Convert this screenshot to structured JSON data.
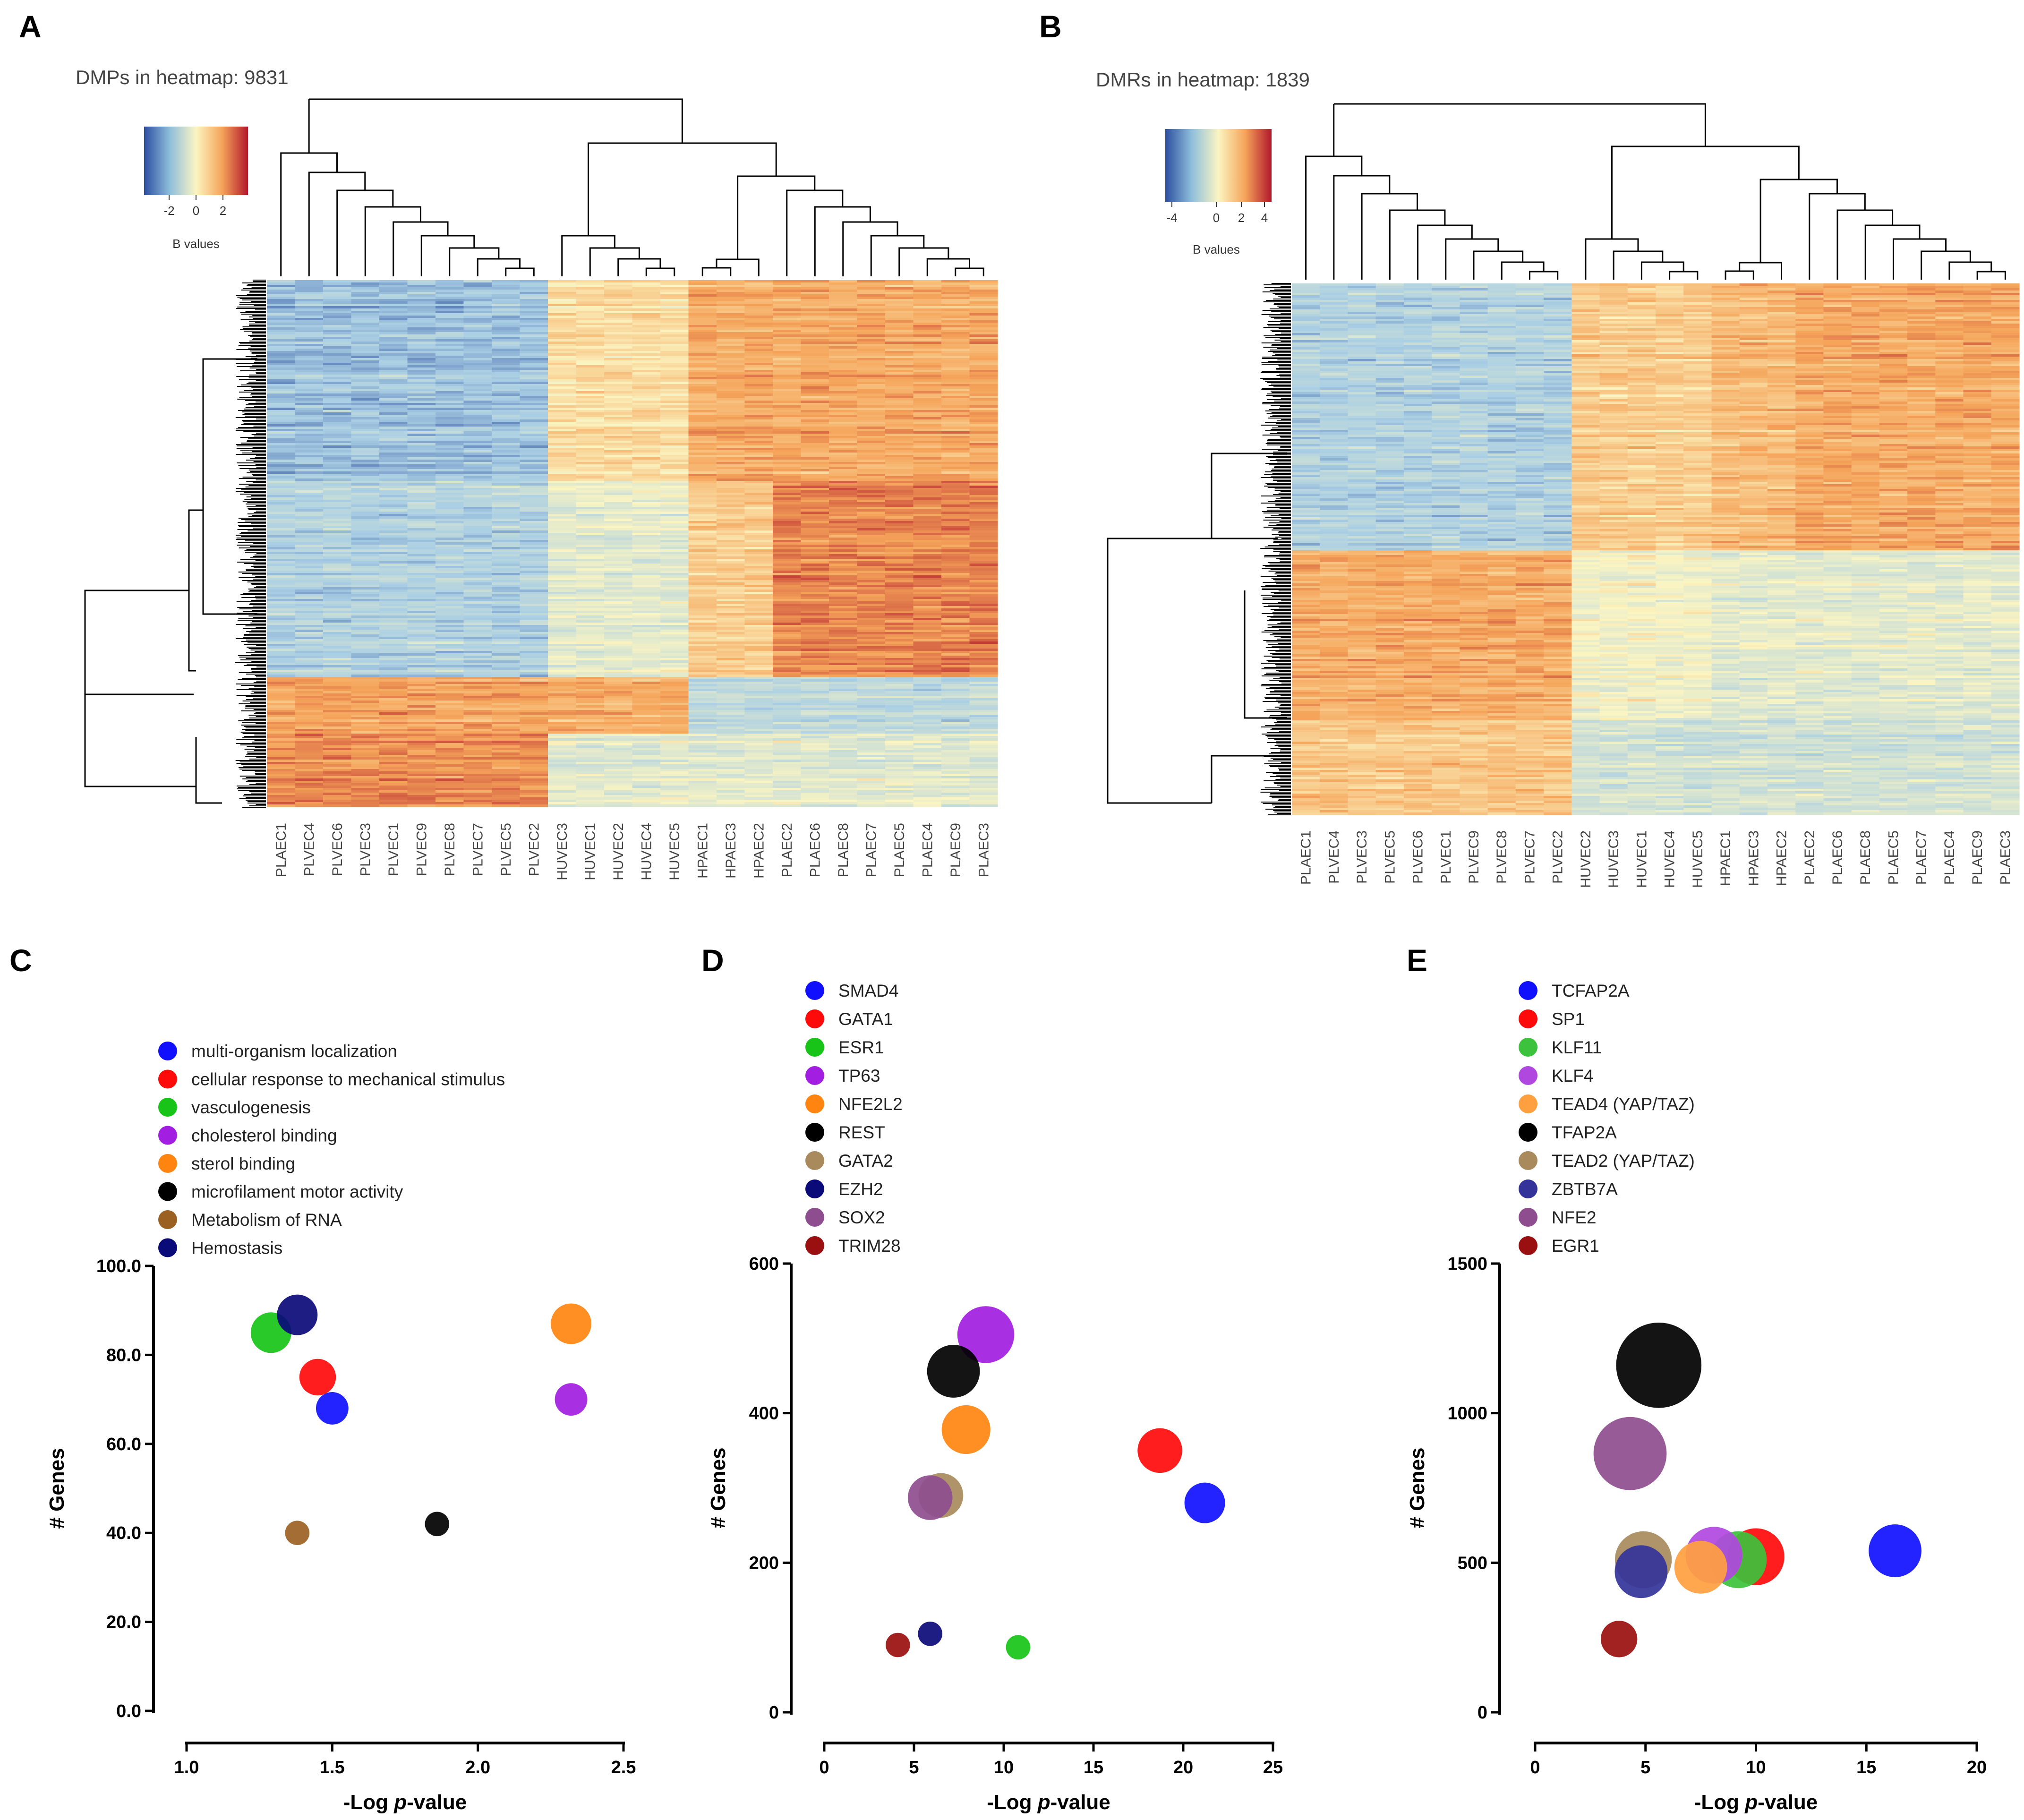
{
  "panels": {
    "A": "A",
    "B": "B",
    "C": "C",
    "D": "D",
    "E": "E"
  },
  "colors": {
    "blue": "#2c4fa0",
    "lightblue": "#aacfe4",
    "pale": "#fbf5c2",
    "orange": "#f5a45a",
    "red": "#b2182b"
  },
  "heatmapA": {
    "title": "DMPs in heatmap: 9831",
    "legend_ticks": [
      "-2",
      "0",
      "2"
    ],
    "legend_label": "B values",
    "columns": [
      "PLAEC1",
      "PLVEC4",
      "PLVEC6",
      "PLVEC3",
      "PLVEC1",
      "PLVEC9",
      "PLVEC8",
      "PLVEC7",
      "PLVEC5",
      "PLVEC2",
      "HUVEC3",
      "HUVEC1",
      "HUVEC2",
      "HUVEC4",
      "HUVEC5",
      "HPAEC1",
      "HPAEC3",
      "HPAEC2",
      "PLAEC2",
      "PLAEC6",
      "PLAEC8",
      "PLAEC7",
      "PLAEC5",
      "PLAEC4",
      "PLAEC9",
      "PLAEC3"
    ]
  },
  "heatmapB": {
    "title": "DMRs in heatmap: 1839",
    "legend_ticks": [
      "-4",
      "0",
      "2",
      "4"
    ],
    "legend_label": "B values",
    "columns": [
      "PLAEC1",
      "PLVEC4",
      "PLVEC3",
      "PLVEC5",
      "PLVEC6",
      "PLVEC1",
      "PLVEC9",
      "PLVEC8",
      "PLVEC7",
      "PLVEC2",
      "HUVEC2",
      "HUVEC3",
      "HUVEC1",
      "HUVEC4",
      "HUVEC5",
      "HPAEC1",
      "HPAEC3",
      "HPAEC2",
      "PLAEC2",
      "PLAEC6",
      "PLAEC8",
      "PLAEC5",
      "PLAEC7",
      "PLAEC4",
      "PLAEC9",
      "PLAEC3"
    ]
  },
  "chart_data": [
    {
      "id": "C",
      "type": "scatter",
      "title": "",
      "xlabel": "-Log p-value",
      "ylabel": "# Genes",
      "xlim": [
        1.0,
        2.5
      ],
      "ylim": [
        0,
        100
      ],
      "xticks": [
        "1.0",
        "1.5",
        "2.0",
        "2.5"
      ],
      "yticks": [
        "0.0",
        "20.0",
        "40.0",
        "60.0",
        "80.0",
        "100.0"
      ],
      "series": [
        {
          "name": "multi-organism localization",
          "color": "#1010ff",
          "x": 1.5,
          "y": 68,
          "size": 8
        },
        {
          "name": "cellular response to mechanical stimulus",
          "color": "#ff0a0a",
          "x": 1.45,
          "y": 75,
          "size": 9
        },
        {
          "name": "vasculogenesis",
          "color": "#18c418",
          "x": 1.29,
          "y": 85,
          "size": 10
        },
        {
          "name": "cholesterol binding",
          "color": "#a21ee0",
          "x": 2.32,
          "y": 70,
          "size": 8
        },
        {
          "name": "sterol binding",
          "color": "#ff8510",
          "x": 2.32,
          "y": 87,
          "size": 10
        },
        {
          "name": "microfilament motor activity",
          "color": "#000000",
          "x": 1.86,
          "y": 42,
          "size": 6
        },
        {
          "name": "Metabolism of RNA",
          "color": "#9b6122",
          "x": 1.38,
          "y": 40,
          "size": 6
        },
        {
          "name": "Hemostasis",
          "color": "#0a0a78",
          "x": 1.38,
          "y": 89,
          "size": 10
        }
      ]
    },
    {
      "id": "D",
      "type": "scatter",
      "title": "",
      "xlabel": "-Log p-value",
      "ylabel": "# Genes",
      "xlim": [
        0,
        25
      ],
      "ylim": [
        0,
        600
      ],
      "xticks": [
        "0",
        "5",
        "10",
        "15",
        "20",
        "25"
      ],
      "yticks": [
        "0",
        "200",
        "400",
        "600"
      ],
      "series": [
        {
          "name": "SMAD4",
          "color": "#1010ff",
          "x": 21.2,
          "y": 280,
          "size": 10
        },
        {
          "name": "GATA1",
          "color": "#ff0a0a",
          "x": 18.7,
          "y": 350,
          "size": 11
        },
        {
          "name": "ESR1",
          "color": "#18c418",
          "x": 10.8,
          "y": 87,
          "size": 6
        },
        {
          "name": "TP63",
          "color": "#a21ee0",
          "x": 9.0,
          "y": 505,
          "size": 14
        },
        {
          "name": "NFE2L2",
          "color": "#ff8510",
          "x": 7.9,
          "y": 378,
          "size": 12
        },
        {
          "name": "REST",
          "color": "#000000",
          "x": 7.2,
          "y": 456,
          "size": 13
        },
        {
          "name": "GATA2",
          "color": "#a88a5c",
          "x": 6.5,
          "y": 290,
          "size": 11
        },
        {
          "name": "EZH2",
          "color": "#0a0a78",
          "x": 5.9,
          "y": 105,
          "size": 6
        },
        {
          "name": "SOX2",
          "color": "#8e4d8e",
          "x": 5.9,
          "y": 287,
          "size": 11
        },
        {
          "name": "TRIM28",
          "color": "#9a0f0f",
          "x": 4.1,
          "y": 90,
          "size": 6
        }
      ]
    },
    {
      "id": "E",
      "type": "scatter",
      "title": "",
      "xlabel": "-Log p-value",
      "ylabel": "# Genes",
      "xlim": [
        0,
        20
      ],
      "ylim": [
        0,
        1500
      ],
      "xticks": [
        "0",
        "5",
        "10",
        "15",
        "20"
      ],
      "yticks": [
        "0",
        "500",
        "1000",
        "1500"
      ],
      "series": [
        {
          "name": "TCFAP2A",
          "color": "#1010ff",
          "x": 16.3,
          "y": 540,
          "size": 13
        },
        {
          "name": "SP1",
          "color": "#ff0a0a",
          "x": 10.0,
          "y": 520,
          "size": 14
        },
        {
          "name": "KLF11",
          "color": "#3cc23c",
          "x": 9.2,
          "y": 510,
          "size": 14
        },
        {
          "name": "KLF4",
          "color": "#b048e0",
          "x": 8.1,
          "y": 525,
          "size": 14
        },
        {
          "name": "TEAD4 (YAP/TAZ)",
          "color": "#ffa040",
          "x": 7.5,
          "y": 485,
          "size": 13
        },
        {
          "name": "TFAP2A",
          "color": "#000000",
          "x": 5.6,
          "y": 1160,
          "size": 21
        },
        {
          "name": "TEAD2 (YAP/TAZ)",
          "color": "#a88a5c",
          "x": 4.9,
          "y": 510,
          "size": 14
        },
        {
          "name": "ZBTB7A",
          "color": "#333399",
          "x": 4.8,
          "y": 470,
          "size": 13
        },
        {
          "name": "NFE2",
          "color": "#8e4d8e",
          "x": 4.3,
          "y": 865,
          "size": 18
        },
        {
          "name": "EGR1",
          "color": "#9a0f0f",
          "x": 3.8,
          "y": 245,
          "size": 9
        }
      ]
    }
  ]
}
